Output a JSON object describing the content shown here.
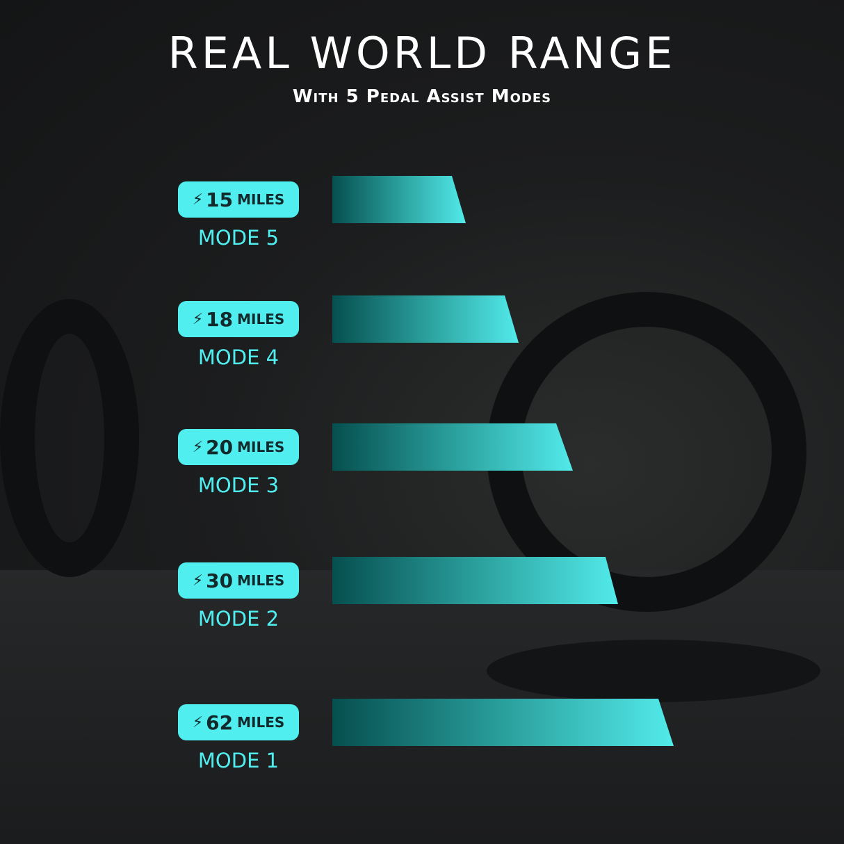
{
  "title": "REAL WORLD RANGE",
  "subtitle": "With 5 Pedal Assist Modes",
  "colors": {
    "accent": "#51eef0",
    "bar_start": "#064f4f",
    "bar_end": "#52eaea"
  },
  "chart_data": {
    "type": "bar",
    "orientation": "horizontal",
    "title": "REAL WORLD RANGE",
    "subtitle": "With 5 Pedal Assist Modes",
    "categories": [
      "MODE 5",
      "MODE 4",
      "MODE 3",
      "MODE 2",
      "MODE 1"
    ],
    "values": [
      15,
      18,
      20,
      30,
      62
    ],
    "unit": "MILES",
    "icon": "lightning-bolt-icon",
    "grid": false
  }
}
